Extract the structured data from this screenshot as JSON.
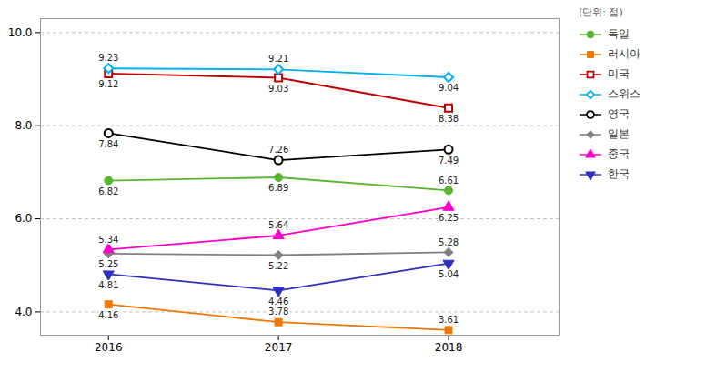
{
  "chart_data": {
    "type": "line",
    "x": [
      2016,
      2017,
      2018
    ],
    "xlim": [
      2015.6,
      2018.65
    ],
    "xticks": [
      2016,
      2017,
      2018
    ],
    "ylim": [
      3.5,
      10.3
    ],
    "yticks": [
      {
        "value": 4.0,
        "label": "4.0"
      },
      {
        "value": 6.0,
        "label": "6.0"
      },
      {
        "value": 8.0,
        "label": "8.0"
      },
      {
        "value": 10.0,
        "label": "10.0"
      }
    ],
    "grid": true,
    "legend": "right",
    "data_labels": true,
    "annotations": [
      "(단위: 점)"
    ],
    "series": [
      {
        "name": "독일",
        "color": "#5ab532",
        "marker": "circle",
        "values": [
          6.82,
          6.89,
          6.61
        ]
      },
      {
        "name": "러시아",
        "color": "#f07800",
        "marker": "square",
        "values": [
          4.16,
          3.78,
          3.61
        ]
      },
      {
        "name": "미국",
        "color": "#c00000",
        "marker": "square-open",
        "values": [
          9.12,
          9.03,
          8.38
        ]
      },
      {
        "name": "스위스",
        "color": "#00b0f0",
        "marker": "diamond-open",
        "values": [
          9.23,
          9.21,
          9.04
        ]
      },
      {
        "name": "영국",
        "color": "#000000",
        "marker": "circle-open",
        "values": [
          7.84,
          7.26,
          7.49
        ]
      },
      {
        "name": "일본",
        "color": "#808080",
        "marker": "diamond",
        "values": [
          5.25,
          5.22,
          5.28
        ]
      },
      {
        "name": "중국",
        "color": "#ff00cc",
        "marker": "triangle",
        "values": [
          5.34,
          5.64,
          6.25
        ]
      },
      {
        "name": "한국",
        "color": "#3030c0",
        "marker": "triangle-down",
        "values": [
          4.81,
          4.46,
          5.04
        ]
      }
    ]
  }
}
